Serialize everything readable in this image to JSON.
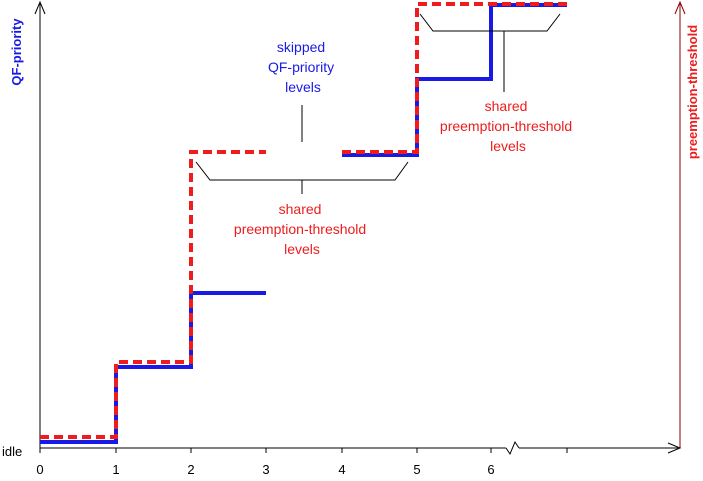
{
  "colors": {
    "qf_priority": "#1a1ae6",
    "preemption_threshold": "#ee1c1c",
    "axis": "#000000"
  },
  "labels": {
    "left_axis_title": "QF-priority",
    "right_axis_title": "preemption-threshold",
    "idle": "idle",
    "skipped": [
      "skipped",
      "QF-priority",
      "levels"
    ],
    "shared_lower": [
      "shared",
      "preemption-threshold",
      "levels"
    ],
    "shared_upper": [
      "shared",
      "preemption-threshold",
      "levels"
    ]
  },
  "x_ticks": [
    "0",
    "1",
    "2",
    "3",
    "4",
    "5",
    "6"
  ],
  "diagram": {
    "qf_priority_line": "solid step series",
    "preemption_threshold_line": "dashed step series",
    "axis_break_after": "6"
  }
}
